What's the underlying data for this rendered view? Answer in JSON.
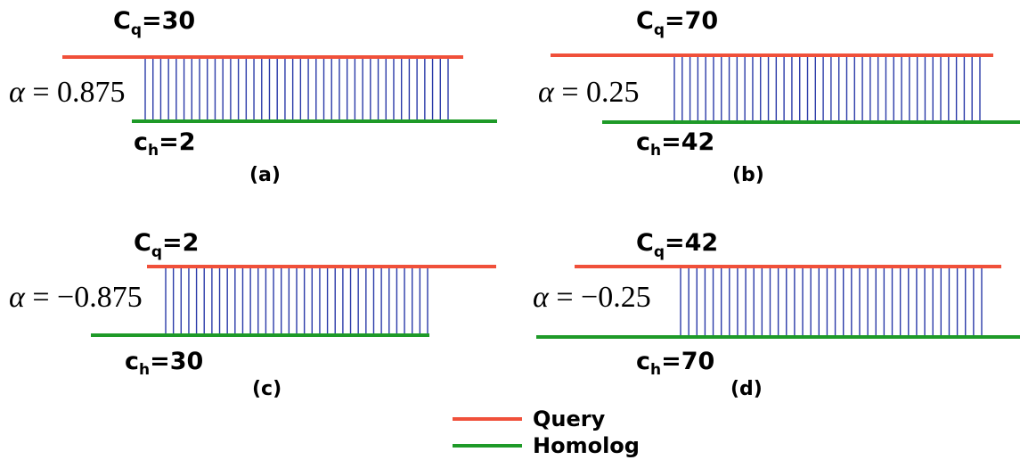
{
  "colors": {
    "query": "#f0503a",
    "homolog": "#1e9a28",
    "link": "#2a3aa8"
  },
  "panels": [
    {
      "id": "a",
      "cq_label": "C",
      "cq_sub": "q",
      "cq_value": "=30",
      "ch_label": "c",
      "ch_sub": "h",
      "ch_value": "=2",
      "alpha_symbol": "α",
      "alpha_value": " = 0.875",
      "caption": "(a)"
    },
    {
      "id": "b",
      "cq_label": "C",
      "cq_sub": "q",
      "cq_value": "=70",
      "ch_label": "c",
      "ch_sub": "h",
      "ch_value": "=42",
      "alpha_symbol": "α",
      "alpha_value": " = 0.25",
      "caption": "(b)"
    },
    {
      "id": "c",
      "cq_label": "C",
      "cq_sub": "q",
      "cq_value": "=2",
      "ch_label": "c",
      "ch_sub": "h",
      "ch_value": "=30",
      "alpha_symbol": "α",
      "alpha_value": " = −0.875",
      "caption": "(c)"
    },
    {
      "id": "d",
      "cq_label": "C",
      "cq_sub": "q",
      "cq_value": "=42",
      "ch_label": "c",
      "ch_sub": "h",
      "ch_value": "=70",
      "alpha_symbol": "α",
      "alpha_value": " = −0.25",
      "caption": "(d)"
    }
  ],
  "legend": {
    "query_label": "Query",
    "homolog_label": "Homolog"
  }
}
